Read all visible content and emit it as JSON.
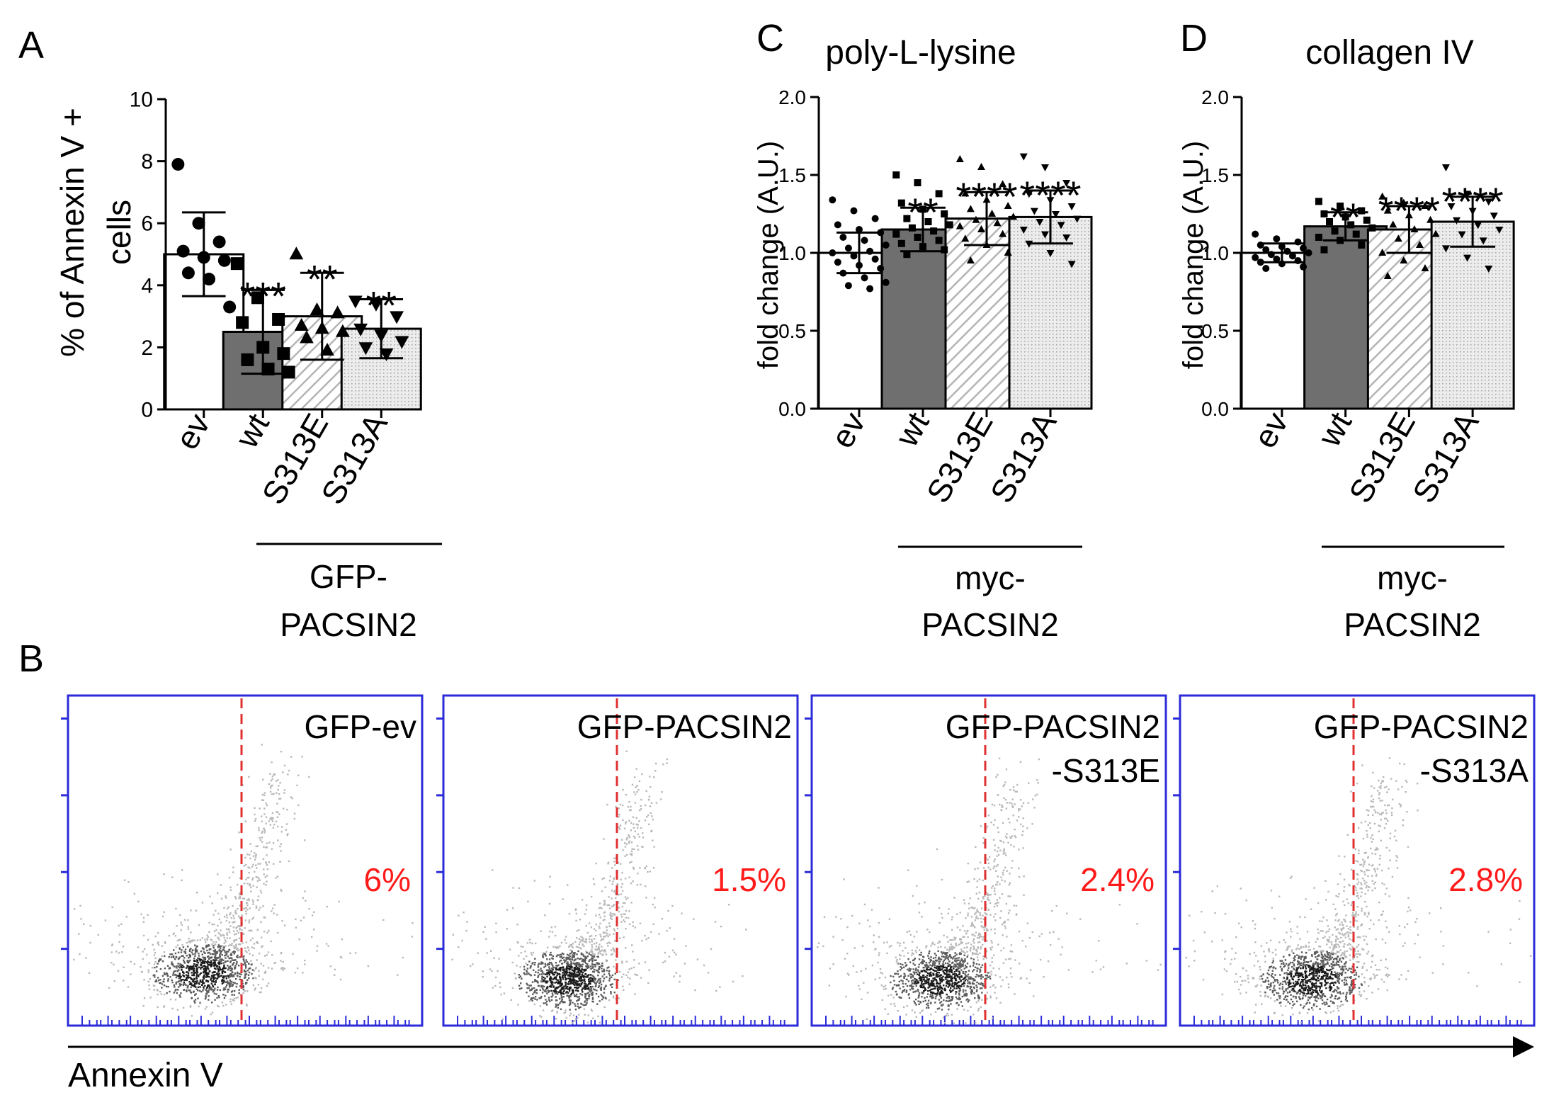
{
  "panel_letters": {
    "a": "A",
    "b": "B",
    "c": "C",
    "d": "D"
  },
  "colors": {
    "ev_fill": "#ffffff",
    "wt_fill": "#6f6f6f",
    "s313e_hatch": "#b4b4b4",
    "s313a_dots": "#a8a8a8",
    "flow_frame": "#2b2bd9",
    "gate_line": "#e03030",
    "percent_text": "#ff1a1a",
    "axis": "#000000"
  },
  "chart_data": [
    {
      "id": "panel-a",
      "type": "bar",
      "title": "",
      "ylabel": "% of Annexin V + cells",
      "ylabel_lines": [
        "% of Annexin V +",
        "cells"
      ],
      "ylim": [
        0,
        10
      ],
      "yticks": [
        "0",
        "2",
        "4",
        "6",
        "8",
        "10"
      ],
      "categories": [
        "ev",
        "wt",
        "S313E",
        "S313A"
      ],
      "values": [
        5.0,
        2.5,
        3.0,
        2.6
      ],
      "errors": [
        1.35,
        1.35,
        1.4,
        0.95
      ],
      "points": [
        [
          7.9,
          6.0,
          5.4,
          5.1,
          4.9,
          4.8,
          4.4,
          4.2,
          3.3
        ],
        [
          4.7,
          3.6,
          2.9,
          2.8,
          2.0,
          1.8,
          1.6,
          1.3,
          1.2
        ],
        [
          5.0,
          3.2,
          3.1,
          2.7,
          2.6,
          2.5,
          2.3,
          1.9
        ],
        [
          3.5,
          3.4,
          3.0,
          2.6,
          2.4,
          2.2,
          2.0,
          1.8
        ]
      ],
      "markers": [
        "circle",
        "square",
        "triangle-up",
        "triangle-down"
      ],
      "significance": [
        "",
        "***",
        "**",
        "**"
      ],
      "group_label": "GFP-\nPACSIN2",
      "group_label_lines": [
        "GFP-",
        "PACSIN2"
      ]
    },
    {
      "id": "panel-c",
      "type": "bar",
      "title": "poly-L-lysine",
      "ylabel": "fold change (A.U.)",
      "ylim": [
        0,
        2
      ],
      "yticks": [
        "0.0",
        "0.5",
        "1.0",
        "1.5",
        "2.0"
      ],
      "categories": [
        "ev",
        "wt",
        "S313E",
        "S313A"
      ],
      "values": [
        1.0,
        1.15,
        1.22,
        1.23
      ],
      "errors": [
        0.13,
        0.14,
        0.17,
        0.17
      ],
      "points": [
        [
          1.34,
          1.27,
          1.22,
          1.18,
          1.15,
          1.13,
          1.1,
          1.08,
          1.05,
          1.03,
          1.01,
          1.0,
          0.98,
          0.96,
          0.94,
          0.92,
          0.9,
          0.87,
          0.84,
          0.81,
          0.79,
          0.77
        ],
        [
          1.5,
          1.45,
          1.38,
          1.32,
          1.28,
          1.25,
          1.22,
          1.2,
          1.18,
          1.16,
          1.14,
          1.12,
          1.1,
          1.08,
          1.06,
          1.04,
          1.02,
          0.99
        ],
        [
          1.6,
          1.55,
          1.44,
          1.38,
          1.34,
          1.3,
          1.28,
          1.25,
          1.23,
          1.21,
          1.19,
          1.17,
          1.15,
          1.12,
          1.09,
          1.05,
          1.0,
          0.95
        ],
        [
          1.62,
          1.55,
          1.45,
          1.38,
          1.34,
          1.3,
          1.27,
          1.25,
          1.22,
          1.2,
          1.18,
          1.15,
          1.12,
          1.1,
          1.06,
          1.0,
          0.93
        ]
      ],
      "markers": [
        "circle",
        "square",
        "triangle-up",
        "triangle-down"
      ],
      "significance": [
        "",
        "**",
        "****",
        "****"
      ],
      "group_label": "myc-\nPACSIN2",
      "group_label_lines": [
        "myc-",
        "PACSIN2"
      ]
    },
    {
      "id": "panel-d",
      "type": "bar",
      "title": "collagen IV",
      "ylabel": "fold change (A.U.)",
      "ylim": [
        0,
        2
      ],
      "yticks": [
        "0.0",
        "0.5",
        "1.0",
        "1.5",
        "2.0"
      ],
      "categories": [
        "ev",
        "wt",
        "S313E",
        "S313A"
      ],
      "values": [
        1.0,
        1.17,
        1.15,
        1.2
      ],
      "errors": [
        0.06,
        0.09,
        0.15,
        0.16
      ],
      "points": [
        [
          1.12,
          1.09,
          1.07,
          1.05,
          1.04,
          1.03,
          1.02,
          1.01,
          1.0,
          0.99,
          0.98,
          0.97,
          0.96,
          0.95,
          0.94,
          0.93,
          0.91,
          0.9
        ],
        [
          1.33,
          1.3,
          1.27,
          1.25,
          1.23,
          1.21,
          1.2,
          1.18,
          1.16,
          1.14,
          1.12,
          1.1,
          1.08,
          1.05,
          1.02
        ],
        [
          1.36,
          1.32,
          1.3,
          1.27,
          1.24,
          1.21,
          1.18,
          1.15,
          1.12,
          1.09,
          1.05,
          1.0,
          0.95,
          0.9,
          0.85
        ],
        [
          1.55,
          1.38,
          1.33,
          1.3,
          1.27,
          1.24,
          1.21,
          1.18,
          1.15,
          1.12,
          1.08,
          1.03,
          0.97,
          0.9
        ]
      ],
      "markers": [
        "circle",
        "square",
        "triangle-up",
        "triangle-down"
      ],
      "significance": [
        "",
        "**",
        "****",
        "****"
      ],
      "group_label": "myc-\nPACSIN2",
      "group_label_lines": [
        "myc-",
        "PACSIN2"
      ]
    },
    {
      "id": "panel-b",
      "type": "scatter",
      "title": "",
      "xlabel": "Annexin V",
      "panels": [
        {
          "label_lines": [
            "GFP-ev"
          ],
          "percent": "6%",
          "gate": 0.49,
          "center": [
            0.38,
            0.16
          ],
          "spread": 1.0
        },
        {
          "label_lines": [
            "GFP-PACSIN2"
          ],
          "percent": "1.5%",
          "gate": 0.49,
          "center": [
            0.35,
            0.14
          ],
          "spread": 0.85
        },
        {
          "label_lines": [
            "GFP-PACSIN2",
            "-S313E"
          ],
          "percent": "2.4%",
          "gate": 0.49,
          "center": [
            0.36,
            0.14
          ],
          "spread": 0.95
        },
        {
          "label_lines": [
            "GFP-PACSIN2",
            "-S313A"
          ],
          "percent": "2.8%",
          "gate": 0.49,
          "center": [
            0.37,
            0.14
          ],
          "spread": 0.95
        }
      ]
    }
  ]
}
